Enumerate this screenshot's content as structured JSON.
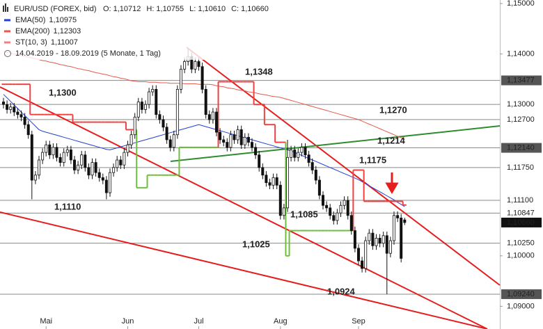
{
  "chart_data": {
    "type": "candlestick",
    "title": "EUR/USD (FOREX, bid)",
    "subtitle": "14.04.2019 - 18.09.2019 (5 Monate, 1 Tag)",
    "ohlc": [
      {
        "key": "O:",
        "value": 1.10712,
        "label": "1,10712"
      },
      {
        "key": "H:",
        "value": 1.10755,
        "label": "1,10755"
      },
      {
        "key": "L:",
        "value": 1.1061,
        "label": "1,10610"
      },
      {
        "key": "C:",
        "value": 1.1066,
        "label": "1,10660"
      }
    ],
    "ylim": [
      1.0855,
      1.1507
    ],
    "yticks": [
      {
        "value": 1.15,
        "label": "1,15000"
      },
      {
        "value": 1.14,
        "label": "1,14000"
      },
      {
        "value": 1.1,
        "label": "1,10000"
      },
      {
        "value": 1.09,
        "label": "1,09000"
      }
    ],
    "levels": [
      {
        "value": 1.13477,
        "label": "1,13477",
        "boxed": true
      },
      {
        "value": 1.13,
        "label": "1,13000",
        "boxed": false
      },
      {
        "value": 1.127,
        "label": "1,12700",
        "boxed": false
      },
      {
        "value": 1.1214,
        "label": "1,12140",
        "boxed": true
      },
      {
        "value": 1.1175,
        "label": "1,11750",
        "boxed": false
      },
      {
        "value": 1.111,
        "label": "1,11100",
        "boxed": false
      },
      {
        "value": 1.10847,
        "label": "1,10847",
        "boxed": false
      },
      {
        "value": 1.1025,
        "label": "1,10250",
        "boxed": false
      },
      {
        "value": 1.0924,
        "label": "1,09240",
        "boxed": true
      }
    ],
    "last": {
      "value": 1.1066,
      "label": "1,10660"
    },
    "categories": [
      null,
      null,
      null,
      null,
      null,
      null,
      null,
      null,
      null,
      null,
      null,
      null,
      "Mai",
      null,
      null,
      null,
      null,
      null,
      null,
      null,
      null,
      null,
      null,
      null,
      null,
      null,
      null,
      null,
      null,
      null,
      null,
      null,
      null,
      null,
      null,
      "Jun",
      null,
      null,
      null,
      null,
      null,
      null,
      null,
      null,
      null,
      null,
      null,
      null,
      null,
      null,
      null,
      null,
      null,
      null,
      null,
      "Jul",
      null,
      null,
      null,
      null,
      null,
      null,
      null,
      null,
      null,
      null,
      null,
      null,
      null,
      null,
      null,
      null,
      null,
      null,
      null,
      null,
      null,
      null,
      "Aug",
      null,
      null,
      null,
      null,
      null,
      null,
      null,
      null,
      null,
      null,
      null,
      null,
      null,
      null,
      null,
      null,
      null,
      null,
      null,
      null,
      null,
      "Sep",
      null,
      null,
      null,
      null,
      null,
      null,
      null,
      null,
      null,
      null,
      null,
      null,
      null
    ],
    "open": [
      1.1305,
      1.13,
      1.129,
      1.1295,
      1.1285,
      1.128,
      1.1275,
      1.126,
      1.124,
      1.115,
      1.116,
      1.119,
      1.1205,
      1.122,
      1.12,
      1.1215,
      1.1195,
      1.1185,
      1.1205,
      1.121,
      1.119,
      1.117,
      1.118,
      1.12,
      1.1175,
      1.116,
      1.1185,
      1.1165,
      1.1155,
      1.115,
      1.1125,
      1.1165,
      1.1175,
      1.119,
      1.118,
      1.1205,
      1.122,
      1.124,
      1.1275,
      1.1305,
      1.129,
      1.13,
      1.1325,
      1.133,
      1.128,
      1.127,
      1.1255,
      1.123,
      1.1215,
      1.124,
      1.133,
      1.137,
      1.1385,
      1.1395,
      1.137,
      1.1385,
      1.1375,
      1.133,
      1.128,
      1.127,
      1.1285,
      1.1245,
      1.123,
      1.1225,
      1.1215,
      1.124,
      1.123,
      1.125,
      1.122,
      1.1235,
      1.1225,
      1.1215,
      1.12,
      1.1175,
      1.116,
      1.1145,
      1.114,
      1.1155,
      1.114,
      1.108,
      1.1095,
      1.1195,
      1.121,
      1.1195,
      1.1205,
      1.1215,
      1.12,
      1.1185,
      1.117,
      1.115,
      1.112,
      1.11,
      1.1095,
      1.108,
      1.107,
      1.1085,
      1.11,
      1.111,
      1.108,
      1.105,
      1.1015,
      1.099,
      1.0975,
      1.103,
      1.1045,
      1.102,
      1.1035,
      1.1025,
      1.104,
      1.1005,
      1.103,
      1.108,
      1.1075,
      1.10712
    ],
    "high": [
      1.1313,
      1.1308,
      1.1303,
      1.1303,
      1.1293,
      1.1288,
      1.1283,
      1.1268,
      1.1248,
      1.1168,
      1.1198,
      1.1213,
      1.1228,
      1.1228,
      1.1223,
      1.1223,
      1.1203,
      1.1213,
      1.1218,
      1.1218,
      1.1198,
      1.1188,
      1.1208,
      1.1208,
      1.1183,
      1.1193,
      1.1193,
      1.1173,
      1.1163,
      1.1158,
      1.1173,
      1.1183,
      1.1198,
      1.1198,
      1.1213,
      1.1228,
      1.1248,
      1.1283,
      1.1313,
      1.1313,
      1.1308,
      1.1333,
      1.1338,
      1.1338,
      1.1288,
      1.1278,
      1.1263,
      1.1238,
      1.1248,
      1.1338,
      1.1378,
      1.1393,
      1.141,
      1.1403,
      1.1393,
      1.1393,
      1.1383,
      1.1338,
      1.1288,
      1.1293,
      1.1293,
      1.1253,
      1.1238,
      1.1233,
      1.1248,
      1.1248,
      1.1258,
      1.1258,
      1.1243,
      1.1243,
      1.1233,
      1.1223,
      1.1208,
      1.1183,
      1.1168,
      1.1153,
      1.1163,
      1.1163,
      1.1148,
      1.1103,
      1.123,
      1.1218,
      1.1218,
      1.1213,
      1.1223,
      1.1223,
      1.1208,
      1.1193,
      1.1178,
      1.1158,
      1.1128,
      1.1108,
      1.1103,
      1.1088,
      1.1093,
      1.1108,
      1.1118,
      1.1118,
      1.1088,
      1.1058,
      1.1023,
      1.0998,
      1.1038,
      1.1053,
      1.1053,
      1.1043,
      1.1043,
      1.1048,
      1.1048,
      1.1038,
      1.1088,
      1.1088,
      1.1083,
      1.10755
    ],
    "low": [
      1.1292,
      1.1282,
      1.1282,
      1.1277,
      1.1272,
      1.1267,
      1.1252,
      1.1232,
      1.1112,
      1.1142,
      1.1152,
      1.1182,
      1.1197,
      1.1192,
      1.1192,
      1.1187,
      1.1177,
      1.1177,
      1.1197,
      1.1182,
      1.1162,
      1.1162,
      1.1172,
      1.1167,
      1.1152,
      1.1152,
      1.1157,
      1.1147,
      1.1142,
      1.1112,
      1.1117,
      1.1157,
      1.1167,
      1.1172,
      1.1172,
      1.1197,
      1.1212,
      1.1232,
      1.1267,
      1.1282,
      1.1282,
      1.1292,
      1.1317,
      1.1272,
      1.1262,
      1.1247,
      1.1222,
      1.1207,
      1.1207,
      1.1232,
      1.1322,
      1.1362,
      1.1377,
      1.1362,
      1.1362,
      1.1367,
      1.1322,
      1.1272,
      1.1262,
      1.1262,
      1.1237,
      1.1222,
      1.1217,
      1.1207,
      1.1207,
      1.1222,
      1.1222,
      1.1212,
      1.1212,
      1.1217,
      1.1207,
      1.1192,
      1.1167,
      1.1152,
      1.1137,
      1.1132,
      1.1132,
      1.1132,
      1.1072,
      1.1072,
      1.1087,
      1.1187,
      1.1187,
      1.1187,
      1.1197,
      1.1192,
      1.1177,
      1.1162,
      1.1142,
      1.1112,
      1.1092,
      1.1087,
      1.1072,
      1.1062,
      1.1062,
      1.1077,
      1.1092,
      1.1072,
      1.1042,
      1.1007,
      1.0982,
      1.0967,
      1.0967,
      1.1022,
      1.1012,
      1.1012,
      1.1017,
      1.1017,
      1.0924,
      1.0997,
      1.1022,
      1.1067,
      1.0987,
      1.1061
    ],
    "close": [
      1.13,
      1.129,
      1.1295,
      1.1285,
      1.128,
      1.1275,
      1.126,
      1.124,
      1.115,
      1.116,
      1.119,
      1.1205,
      1.122,
      1.12,
      1.1215,
      1.1195,
      1.1185,
      1.1205,
      1.121,
      1.119,
      1.117,
      1.118,
      1.12,
      1.1175,
      1.116,
      1.1185,
      1.1165,
      1.1155,
      1.115,
      1.1125,
      1.1165,
      1.1175,
      1.119,
      1.118,
      1.1205,
      1.122,
      1.124,
      1.1275,
      1.1305,
      1.129,
      1.13,
      1.1325,
      1.133,
      1.128,
      1.127,
      1.1255,
      1.123,
      1.1215,
      1.124,
      1.133,
      1.137,
      1.1385,
      1.1395,
      1.137,
      1.1385,
      1.1375,
      1.133,
      1.128,
      1.127,
      1.1285,
      1.1245,
      1.123,
      1.1225,
      1.1215,
      1.124,
      1.123,
      1.125,
      1.122,
      1.1235,
      1.1225,
      1.1215,
      1.12,
      1.1175,
      1.116,
      1.1145,
      1.114,
      1.1155,
      1.114,
      1.108,
      1.1095,
      1.1195,
      1.121,
      1.1195,
      1.1205,
      1.1215,
      1.12,
      1.1185,
      1.117,
      1.115,
      1.112,
      1.11,
      1.1095,
      1.108,
      1.107,
      1.1085,
      1.11,
      1.111,
      1.108,
      1.105,
      1.1015,
      1.099,
      1.0975,
      1.103,
      1.1045,
      1.102,
      1.1035,
      1.1025,
      1.104,
      1.1005,
      1.103,
      1.108,
      1.1075,
      1.0995,
      1.1066
    ],
    "indicators": [
      {
        "name": "EMA(50)",
        "value": 1.10975,
        "label": "1,10975",
        "color": "#1f3fd6",
        "values": [
          1.132,
          1.1313,
          1.1306,
          1.1299,
          1.1292,
          1.1285,
          1.1278,
          1.1271,
          1.1264,
          1.1257,
          1.125,
          1.1247,
          1.1245,
          1.1243,
          1.1241,
          1.1239,
          1.1237,
          1.1235,
          1.1233,
          1.1231,
          1.1229,
          1.1227,
          1.1225,
          1.1223,
          1.1221,
          1.1219,
          1.1217,
          1.1215,
          1.1213,
          1.1211,
          1.121,
          1.1212,
          1.1214,
          1.1216,
          1.1218,
          1.122,
          1.1222,
          1.1224,
          1.1226,
          1.1228,
          1.123,
          1.1232,
          1.1234,
          1.1236,
          1.1238,
          1.124,
          1.1242,
          1.1244,
          1.1246,
          1.1248,
          1.125,
          1.1252,
          1.1254,
          1.1256,
          1.1258,
          1.126,
          1.1258,
          1.1256,
          1.1254,
          1.1252,
          1.125,
          1.1248,
          1.1246,
          1.1244,
          1.1242,
          1.124,
          1.1238,
          1.1236,
          1.1234,
          1.1232,
          1.123,
          1.1228,
          1.1226,
          1.1224,
          1.1222,
          1.122,
          1.1218,
          1.1216,
          1.1214,
          1.1212,
          1.121,
          1.1208,
          1.1205,
          1.1202,
          1.1199,
          1.1196,
          1.1193,
          1.119,
          1.1187,
          1.1184,
          1.1181,
          1.1178,
          1.1175,
          1.1172,
          1.1169,
          1.1166,
          1.1163,
          1.116,
          1.1157,
          1.1154,
          1.1151,
          1.1147,
          1.1143,
          1.1139,
          1.1135,
          1.1131,
          1.1127,
          1.1123,
          1.1119,
          1.1115,
          1.1111,
          1.1106,
          1.1102,
          1.10975
        ]
      },
      {
        "name": "EMA(200)",
        "value": 1.12303,
        "label": "1,12303",
        "color": "#e8584a",
        "values": [
          1.1405,
          1.1403,
          1.1402,
          1.14,
          1.1399,
          1.1397,
          1.1395,
          1.1394,
          1.1392,
          1.1391,
          1.1389,
          1.1387,
          1.1386,
          1.1384,
          1.1383,
          1.1381,
          1.1379,
          1.1378,
          1.1376,
          1.1375,
          1.1373,
          1.1371,
          1.137,
          1.1368,
          1.1367,
          1.1365,
          1.1363,
          1.1362,
          1.136,
          1.1359,
          1.1357,
          1.1355,
          1.1354,
          1.1352,
          1.1351,
          1.1349,
          1.1347,
          1.1346,
          1.1345,
          1.1345,
          1.1345,
          1.1344,
          1.1344,
          1.1344,
          1.1343,
          1.1343,
          1.1343,
          1.1342,
          1.1342,
          1.1342,
          1.1342,
          1.1341,
          1.1341,
          1.1341,
          1.1341,
          1.134,
          1.134,
          1.134,
          1.134,
          1.1339,
          1.1337,
          1.1336,
          1.1335,
          1.1333,
          1.1332,
          1.1331,
          1.1329,
          1.1328,
          1.1327,
          1.1325,
          1.1324,
          1.1323,
          1.1321,
          1.132,
          1.1319,
          1.1317,
          1.1316,
          1.1315,
          1.1314,
          1.1312,
          1.131,
          1.1308,
          1.1306,
          1.1304,
          1.1302,
          1.13,
          1.1298,
          1.1296,
          1.1294,
          1.1292,
          1.129,
          1.1288,
          1.1286,
          1.1284,
          1.1282,
          1.128,
          1.1278,
          1.1276,
          1.1274,
          1.1272,
          1.127,
          1.1267,
          1.1264,
          1.1261,
          1.1258,
          1.1255,
          1.1252,
          1.1249,
          1.1246,
          1.1243,
          1.124,
          1.1237,
          1.1234,
          1.12303
        ]
      },
      {
        "name": "ST(10, 3)",
        "value": 1.11007,
        "label": "1,11007",
        "color": "#f08080",
        "up_color": "#6cbf3a",
        "down_color": "#f04040",
        "values": [
          1.134,
          1.134,
          1.134,
          1.134,
          1.134,
          1.134,
          1.134,
          1.134,
          1.128,
          1.128,
          1.128,
          1.128,
          1.128,
          1.128,
          1.128,
          1.128,
          1.128,
          1.128,
          1.128,
          1.128,
          1.1265,
          1.1265,
          1.1265,
          1.1265,
          1.1265,
          1.1265,
          1.1265,
          1.1265,
          1.1265,
          1.1265,
          1.1265,
          1.1265,
          1.1265,
          1.1265,
          1.1265,
          1.125,
          1.125,
          1.125,
          1.1135,
          1.1135,
          1.1135,
          1.116,
          1.116,
          1.116,
          1.116,
          1.116,
          1.116,
          1.116,
          1.116,
          1.116,
          1.1215,
          1.1215,
          1.1215,
          1.1215,
          1.1215,
          1.1215,
          1.1215,
          1.1215,
          1.1215,
          1.1215,
          1.1215,
          1.1345,
          1.1345,
          1.1345,
          1.1345,
          1.1345,
          1.1345,
          1.1345,
          1.1345,
          1.1345,
          1.1345,
          1.13,
          1.13,
          1.13,
          1.126,
          1.126,
          1.126,
          1.1225,
          1.1225,
          1.1225,
          1.1,
          1.105,
          1.105,
          1.105,
          1.105,
          1.105,
          1.105,
          1.105,
          1.105,
          1.105,
          1.105,
          1.105,
          1.105,
          1.105,
          1.105,
          1.105,
          1.105,
          1.105,
          1.105,
          1.117,
          1.117,
          1.117,
          1.1108,
          1.1108,
          1.1108,
          1.1108,
          1.1108,
          1.1108,
          1.1108,
          1.1108,
          1.1108,
          1.1108,
          1.1108,
          1.11007
        ]
      }
    ],
    "annotations": [
      {
        "text": "1,1348",
        "color": "#e32020"
      },
      {
        "text": "1,1300",
        "color": "#e32020"
      },
      {
        "text": "1,1270",
        "color": "#e32020"
      },
      {
        "text": "1,1214",
        "color": "#e32020"
      },
      {
        "text": "1,1175",
        "color": "#e32020"
      },
      {
        "text": "1,1110",
        "color": "#e32020"
      },
      {
        "text": "1,1085",
        "color": "#e32020"
      },
      {
        "text": "1,1025",
        "color": "#3a8a1e"
      },
      {
        "text": "1,0924",
        "color": "#3a8a1e"
      }
    ]
  }
}
